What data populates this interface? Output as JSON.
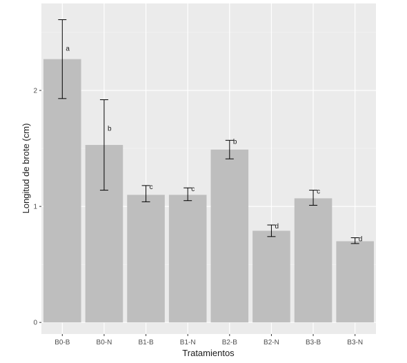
{
  "chart_data": {
    "type": "bar",
    "categories": [
      "B0-B",
      "B0-N",
      "B1-B",
      "B1-N",
      "B2-B",
      "B2-N",
      "B3-B",
      "B3-N"
    ],
    "values": [
      2.27,
      1.53,
      1.1,
      1.1,
      1.49,
      0.79,
      1.07,
      0.7
    ],
    "error_low": [
      1.93,
      1.14,
      1.04,
      1.05,
      1.41,
      0.74,
      1.01,
      0.68
    ],
    "error_high": [
      2.61,
      1.92,
      1.18,
      1.16,
      1.57,
      0.84,
      1.14,
      0.73
    ],
    "significance_labels": [
      "a",
      "b",
      "c",
      "c",
      "b",
      "d",
      "c",
      "d"
    ],
    "xlabel": "Tratamientos",
    "ylabel": "Longitud de brote (cm)",
    "ylim": [
      -0.1,
      2.75
    ],
    "yticks": [
      "0",
      "1",
      "2"
    ],
    "grid": true,
    "colors": {
      "panel": "#ebebeb",
      "grid_major": "#ffffff",
      "bar": "#bebebe",
      "error_bar": "#000000"
    }
  }
}
